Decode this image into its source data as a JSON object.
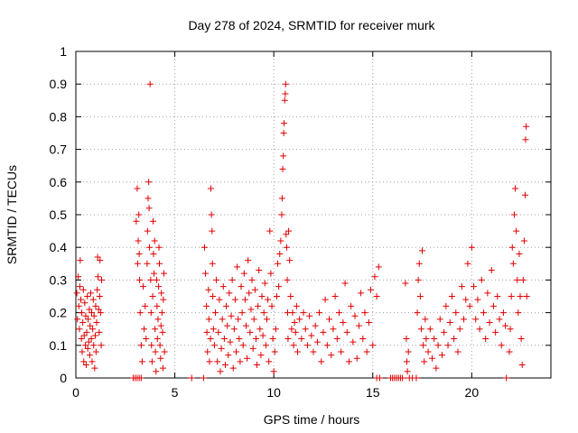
{
  "chart_data": {
    "type": "scatter",
    "title": "Day 278 of 2024, SRMTID for receiver murk",
    "xlabel": "GPS time / hours",
    "ylabel": "SRMTID / TECUs",
    "xlim": [
      0,
      24
    ],
    "ylim": [
      0,
      1
    ],
    "x_ticks": [
      "0",
      "5",
      "10",
      "15",
      "20"
    ],
    "y_ticks": [
      "0",
      "0.1",
      "0.2",
      "0.3",
      "0.4",
      "0.5",
      "0.6",
      "0.7",
      "0.8",
      "0.9",
      "1"
    ],
    "grid": true,
    "marker": "plus",
    "color": "#e00000",
    "points": [
      [
        0.05,
        0.26
      ],
      [
        0.08,
        0.18
      ],
      [
        0.12,
        0.31
      ],
      [
        0.15,
        0.22
      ],
      [
        0.18,
        0.15
      ],
      [
        0.2,
        0.28
      ],
      [
        0.22,
        0.36
      ],
      [
        0.25,
        0.24
      ],
      [
        0.28,
        0.12
      ],
      [
        0.3,
        0.2
      ],
      [
        0.32,
        0.08
      ],
      [
        0.35,
        0.17
      ],
      [
        0.38,
        0.27
      ],
      [
        0.4,
        0.05
      ],
      [
        0.42,
        0.13
      ],
      [
        0.45,
        0.23
      ],
      [
        0.48,
        0.1
      ],
      [
        0.5,
        0.19
      ],
      [
        0.52,
        0.04
      ],
      [
        0.55,
        0.14
      ],
      [
        0.58,
        0.25
      ],
      [
        0.6,
        0.09
      ],
      [
        0.62,
        0.18
      ],
      [
        0.65,
        0.11
      ],
      [
        0.68,
        0.21
      ],
      [
        0.7,
        0.07
      ],
      [
        0.72,
        0.16
      ],
      [
        0.75,
        0.26
      ],
      [
        0.78,
        0.12
      ],
      [
        0.8,
        0.2
      ],
      [
        0.82,
        0.05
      ],
      [
        0.85,
        0.15
      ],
      [
        0.88,
        0.24
      ],
      [
        0.9,
        0.1
      ],
      [
        0.92,
        0.19
      ],
      [
        0.95,
        0.03
      ],
      [
        0.98,
        0.13
      ],
      [
        1.0,
        0.22
      ],
      [
        1.02,
        0.08
      ],
      [
        1.05,
        0.17
      ],
      [
        1.08,
        0.27
      ],
      [
        1.1,
        0.37
      ],
      [
        1.12,
        0.31
      ],
      [
        1.15,
        0.21
      ],
      [
        1.18,
        0.14
      ],
      [
        1.2,
        0.25
      ],
      [
        1.22,
        0.36
      ],
      [
        1.25,
        0.2
      ],
      [
        1.28,
        0.1
      ],
      [
        1.3,
        0.3
      ],
      [
        2.9,
        0.0
      ],
      [
        3.0,
        0.0
      ],
      [
        3.1,
        0.0
      ],
      [
        3.2,
        0.0
      ],
      [
        3.3,
        0.0
      ],
      [
        3.05,
        0.48
      ],
      [
        3.1,
        0.58
      ],
      [
        3.12,
        0.35
      ],
      [
        3.15,
        0.42
      ],
      [
        3.18,
        0.5
      ],
      [
        3.2,
        0.38
      ],
      [
        3.22,
        0.3
      ],
      [
        3.25,
        0.2
      ],
      [
        3.3,
        0.1
      ],
      [
        3.35,
        0.05
      ],
      [
        3.4,
        0.28
      ],
      [
        3.45,
        0.15
      ],
      [
        3.5,
        0.22
      ],
      [
        3.55,
        0.12
      ],
      [
        3.6,
        0.35
      ],
      [
        3.62,
        0.45
      ],
      [
        3.65,
        0.55
      ],
      [
        3.68,
        0.6
      ],
      [
        3.7,
        0.52
      ],
      [
        3.72,
        0.4
      ],
      [
        3.75,
        0.9
      ],
      [
        3.78,
        0.3
      ],
      [
        3.8,
        0.2
      ],
      [
        3.82,
        0.1
      ],
      [
        3.85,
        0.05
      ],
      [
        3.88,
        0.25
      ],
      [
        3.9,
        0.48
      ],
      [
        3.92,
        0.38
      ],
      [
        3.95,
        0.32
      ],
      [
        3.98,
        0.42
      ],
      [
        4.0,
        0.15
      ],
      [
        4.02,
        0.08
      ],
      [
        4.05,
        0.02
      ],
      [
        4.08,
        0.3
      ],
      [
        4.1,
        0.22
      ],
      [
        4.12,
        0.12
      ],
      [
        4.15,
        0.18
      ],
      [
        4.18,
        0.28
      ],
      [
        4.2,
        0.4
      ],
      [
        4.22,
        0.35
      ],
      [
        4.25,
        0.1
      ],
      [
        4.28,
        0.06
      ],
      [
        4.3,
        0.16
      ],
      [
        4.32,
        0.26
      ],
      [
        4.35,
        0.2
      ],
      [
        4.38,
        0.14
      ],
      [
        4.4,
        0.03
      ],
      [
        4.42,
        0.24
      ],
      [
        4.45,
        0.32
      ],
      [
        4.48,
        0.08
      ],
      [
        5.85,
        0.0
      ],
      [
        6.45,
        0.0
      ],
      [
        6.5,
        0.4
      ],
      [
        6.55,
        0.32
      ],
      [
        6.6,
        0.22
      ],
      [
        6.62,
        0.14
      ],
      [
        6.65,
        0.08
      ],
      [
        6.7,
        0.27
      ],
      [
        6.72,
        0.18
      ],
      [
        6.75,
        0.05
      ],
      [
        6.8,
        0.12
      ],
      [
        6.82,
        0.58
      ],
      [
        6.85,
        0.5
      ],
      [
        6.88,
        0.45
      ],
      [
        6.9,
        0.35
      ],
      [
        6.92,
        0.25
      ],
      [
        6.95,
        0.15
      ],
      [
        7.0,
        0.1
      ],
      [
        7.05,
        0.2
      ],
      [
        7.1,
        0.3
      ],
      [
        7.15,
        0.05
      ],
      [
        7.2,
        0.14
      ],
      [
        7.25,
        0.24
      ],
      [
        7.3,
        0.02
      ],
      [
        7.35,
        0.09
      ],
      [
        7.4,
        0.18
      ],
      [
        7.45,
        0.28
      ],
      [
        7.5,
        0.12
      ],
      [
        7.55,
        0.04
      ],
      [
        7.6,
        0.22
      ],
      [
        7.65,
        0.16
      ],
      [
        7.7,
        0.07
      ],
      [
        7.75,
        0.26
      ],
      [
        7.8,
        0.11
      ],
      [
        7.85,
        0.19
      ],
      [
        7.9,
        0.3
      ],
      [
        7.95,
        0.03
      ],
      [
        8.0,
        0.15
      ],
      [
        8.05,
        0.24
      ],
      [
        8.1,
        0.08
      ],
      [
        8.15,
        0.34
      ],
      [
        8.2,
        0.18
      ],
      [
        8.25,
        0.12
      ],
      [
        8.3,
        0.05
      ],
      [
        8.35,
        0.28
      ],
      [
        8.4,
        0.2
      ],
      [
        8.45,
        0.1
      ],
      [
        8.5,
        0.32
      ],
      [
        8.55,
        0.24
      ],
      [
        8.6,
        0.16
      ],
      [
        8.65,
        0.06
      ],
      [
        8.7,
        0.36
      ],
      [
        8.75,
        0.26
      ],
      [
        8.8,
        0.14
      ],
      [
        8.85,
        0.21
      ],
      [
        8.9,
        0.3
      ],
      [
        8.95,
        0.09
      ],
      [
        9.0,
        0.18
      ],
      [
        9.05,
        0.27
      ],
      [
        9.1,
        0.12
      ],
      [
        9.15,
        0.04
      ],
      [
        9.2,
        0.22
      ],
      [
        9.25,
        0.33
      ],
      [
        9.3,
        0.15
      ],
      [
        9.35,
        0.07
      ],
      [
        9.4,
        0.25
      ],
      [
        9.45,
        0.13
      ],
      [
        9.5,
        0.2
      ],
      [
        9.55,
        0.29
      ],
      [
        9.6,
        0.1
      ],
      [
        9.65,
        0.18
      ],
      [
        9.7,
        0.24
      ],
      [
        9.75,
        0.05
      ],
      [
        9.8,
        0.45
      ],
      [
        9.85,
        0.32
      ],
      [
        9.9,
        0.22
      ],
      [
        9.95,
        0.12
      ],
      [
        10.0,
        0.02
      ],
      [
        10.05,
        0.08
      ],
      [
        10.1,
        0.15
      ],
      [
        10.15,
        0.25
      ],
      [
        10.2,
        0.35
      ],
      [
        10.25,
        0.28
      ],
      [
        10.3,
        0.38
      ],
      [
        10.35,
        0.42
      ],
      [
        10.4,
        0.5
      ],
      [
        10.42,
        0.55
      ],
      [
        10.45,
        0.64
      ],
      [
        10.48,
        0.68
      ],
      [
        10.5,
        0.75
      ],
      [
        10.52,
        0.78
      ],
      [
        10.55,
        0.85
      ],
      [
        10.58,
        0.87
      ],
      [
        10.6,
        0.9
      ],
      [
        10.62,
        0.44
      ],
      [
        10.65,
        0.4
      ],
      [
        10.68,
        0.3
      ],
      [
        10.7,
        0.2
      ],
      [
        10.72,
        0.12
      ],
      [
        10.75,
        0.45
      ],
      [
        10.8,
        0.36
      ],
      [
        10.85,
        0.25
      ],
      [
        10.9,
        0.15
      ],
      [
        10.95,
        0.2
      ],
      [
        11.0,
        0.1
      ],
      [
        11.05,
        0.17
      ],
      [
        11.1,
        0.14
      ],
      [
        11.15,
        0.22
      ],
      [
        11.2,
        0.08
      ],
      [
        11.3,
        0.18
      ],
      [
        11.4,
        0.12
      ],
      [
        11.5,
        0.2
      ],
      [
        11.6,
        0.15
      ],
      [
        11.7,
        0.1
      ],
      [
        11.8,
        0.19
      ],
      [
        11.9,
        0.13
      ],
      [
        12.0,
        0.08
      ],
      [
        12.1,
        0.16
      ],
      [
        12.2,
        0.11
      ],
      [
        12.3,
        0.2
      ],
      [
        12.4,
        0.05
      ],
      [
        12.5,
        0.14
      ],
      [
        12.6,
        0.24
      ],
      [
        12.7,
        0.1
      ],
      [
        12.8,
        0.18
      ],
      [
        12.9,
        0.07
      ],
      [
        13.0,
        0.15
      ],
      [
        13.1,
        0.25
      ],
      [
        13.2,
        0.12
      ],
      [
        13.3,
        0.2
      ],
      [
        13.4,
        0.08
      ],
      [
        13.5,
        0.17
      ],
      [
        13.6,
        0.29
      ],
      [
        13.7,
        0.14
      ],
      [
        13.8,
        0.05
      ],
      [
        13.9,
        0.22
      ],
      [
        14.0,
        0.11
      ],
      [
        14.1,
        0.19
      ],
      [
        14.2,
        0.06
      ],
      [
        14.3,
        0.16
      ],
      [
        14.4,
        0.26
      ],
      [
        14.5,
        0.12
      ],
      [
        14.6,
        0.2
      ],
      [
        14.7,
        0.08
      ],
      [
        14.8,
        0.17
      ],
      [
        14.9,
        0.27
      ],
      [
        15.0,
        0.1
      ],
      [
        15.1,
        0.31
      ],
      [
        15.2,
        0.25
      ],
      [
        15.3,
        0.34
      ],
      [
        15.2,
        0.0
      ],
      [
        15.35,
        0.0
      ],
      [
        15.9,
        0.0
      ],
      [
        16.0,
        0.0
      ],
      [
        16.1,
        0.0
      ],
      [
        16.2,
        0.0
      ],
      [
        16.3,
        0.0
      ],
      [
        16.4,
        0.0
      ],
      [
        16.5,
        0.0
      ],
      [
        16.85,
        0.0
      ],
      [
        17.0,
        0.0
      ],
      [
        17.2,
        0.0
      ],
      [
        16.65,
        0.29
      ],
      [
        16.7,
        0.12
      ],
      [
        16.72,
        0.05
      ],
      [
        16.75,
        0.02
      ],
      [
        16.8,
        0.08
      ],
      [
        17.25,
        0.2
      ],
      [
        17.3,
        0.3
      ],
      [
        17.35,
        0.35
      ],
      [
        17.4,
        0.25
      ],
      [
        17.45,
        0.15
      ],
      [
        17.5,
        0.39
      ],
      [
        17.55,
        0.1
      ],
      [
        17.6,
        0.05
      ],
      [
        17.65,
        0.18
      ],
      [
        17.7,
        0.12
      ],
      [
        17.8,
        0.08
      ],
      [
        17.9,
        0.15
      ],
      [
        18.0,
        0.06
      ],
      [
        18.1,
        0.12
      ],
      [
        18.2,
        0.03
      ],
      [
        18.3,
        0.1
      ],
      [
        18.4,
        0.18
      ],
      [
        18.5,
        0.07
      ],
      [
        18.6,
        0.14
      ],
      [
        18.7,
        0.22
      ],
      [
        18.8,
        0.1
      ],
      [
        18.9,
        0.17
      ],
      [
        19.0,
        0.25
      ],
      [
        19.1,
        0.12
      ],
      [
        19.2,
        0.2
      ],
      [
        19.3,
        0.08
      ],
      [
        19.4,
        0.15
      ],
      [
        19.5,
        0.28
      ],
      [
        19.6,
        0.18
      ],
      [
        19.7,
        0.24
      ],
      [
        19.8,
        0.35
      ],
      [
        19.9,
        0.22
      ],
      [
        20.0,
        0.4
      ],
      [
        20.1,
        0.28
      ],
      [
        20.2,
        0.18
      ],
      [
        20.3,
        0.24
      ],
      [
        20.4,
        0.15
      ],
      [
        20.5,
        0.3
      ],
      [
        20.6,
        0.2
      ],
      [
        20.7,
        0.12
      ],
      [
        20.8,
        0.26
      ],
      [
        20.9,
        0.17
      ],
      [
        21.0,
        0.33
      ],
      [
        21.1,
        0.22
      ],
      [
        21.2,
        0.14
      ],
      [
        21.3,
        0.25
      ],
      [
        21.4,
        0.18
      ],
      [
        21.5,
        0.1
      ],
      [
        21.6,
        0.2
      ],
      [
        21.7,
        0.16
      ],
      [
        21.75,
        0.0
      ],
      [
        21.9,
        0.08
      ],
      [
        21.95,
        0.15
      ],
      [
        22.0,
        0.25
      ],
      [
        22.05,
        0.4
      ],
      [
        22.1,
        0.35
      ],
      [
        22.15,
        0.5
      ],
      [
        22.2,
        0.58
      ],
      [
        22.25,
        0.45
      ],
      [
        22.3,
        0.3
      ],
      [
        22.35,
        0.2
      ],
      [
        22.4,
        0.38
      ],
      [
        22.45,
        0.25
      ],
      [
        22.5,
        0.12
      ],
      [
        22.55,
        0.04
      ],
      [
        22.6,
        0.3
      ],
      [
        22.65,
        0.42
      ],
      [
        22.7,
        0.56
      ],
      [
        22.72,
        0.73
      ],
      [
        22.75,
        0.77
      ],
      [
        22.78,
        0.25
      ]
    ]
  }
}
